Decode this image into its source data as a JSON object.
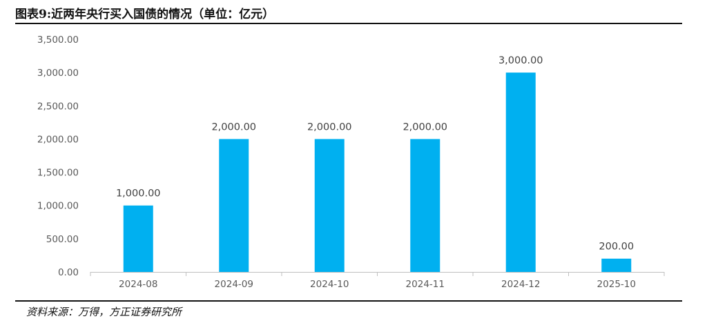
{
  "title": "图表9:近两年央行买入国债的情况（单位：亿元）",
  "source": "资料来源：万得，方正证券研究所",
  "chart_data": {
    "type": "bar",
    "title": "图表9:近两年央行买入国债的情况（单位：亿元）",
    "xlabel": "",
    "ylabel": "",
    "categories": [
      "2024-08",
      "2024-09",
      "2024-10",
      "2024-11",
      "2024-12",
      "2025-10"
    ],
    "values": [
      1000,
      2000,
      2000,
      2000,
      3000,
      200
    ],
    "value_labels": [
      "1,000.00",
      "2,000.00",
      "2,000.00",
      "2,000.00",
      "3,000.00",
      "200.00"
    ],
    "ylim": [
      0,
      3500
    ],
    "yticks": [
      0,
      500,
      1000,
      1500,
      2000,
      2500,
      3000,
      3500
    ],
    "ytick_labels": [
      "0.00",
      "500.00",
      "1,000.00",
      "1,500.00",
      "2,000.00",
      "2,500.00",
      "3,000.00",
      "3,500.00"
    ],
    "bar_color": "#00B0F0",
    "grid": false,
    "legend": "none"
  }
}
